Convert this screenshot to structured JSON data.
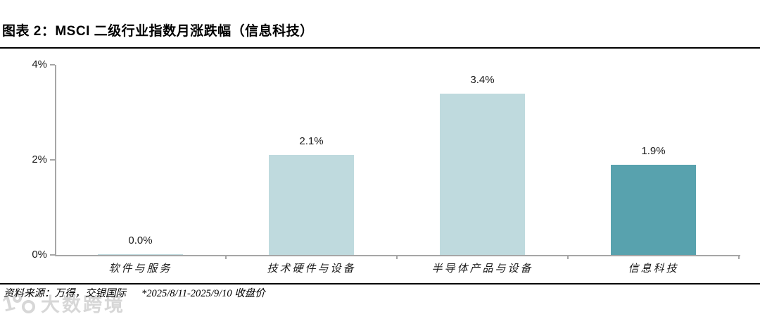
{
  "header": {
    "title": "图表 2：MSCI 二级行业指数月涨跌幅（信息科技）"
  },
  "footer": {
    "source_label": "资料来源：万得，交银国际",
    "note": "*2025/8/11-2025/9/10 收盘价"
  },
  "watermark": {
    "icon": "logo-100-icon",
    "text": "大数跨境"
  },
  "colors": {
    "bar_light": "#bfdade",
    "bar_dark": "#58a2ae",
    "axis": "#a6a6a6",
    "rule": "#000000",
    "watermark": "#d7d7d7"
  },
  "chart_data": {
    "type": "bar",
    "title": "MSCI 二级行业指数月涨跌幅（信息科技）",
    "categories": [
      "软件与服务",
      "技术硬件与设备",
      "半导体产品与设备",
      "信息科技"
    ],
    "values": [
      0.0,
      2.1,
      3.4,
      1.9
    ],
    "value_labels": [
      "0.0%",
      "2.1%",
      "3.4%",
      "1.9%"
    ],
    "bar_colors": [
      "#bfdade",
      "#bfdade",
      "#bfdade",
      "#58a2ae"
    ],
    "xlabel": "",
    "ylabel": "",
    "ylim": [
      0,
      4
    ],
    "yticks": [
      "0%",
      "2%",
      "4%"
    ],
    "grid": false,
    "legend": null,
    "unit": "%"
  }
}
